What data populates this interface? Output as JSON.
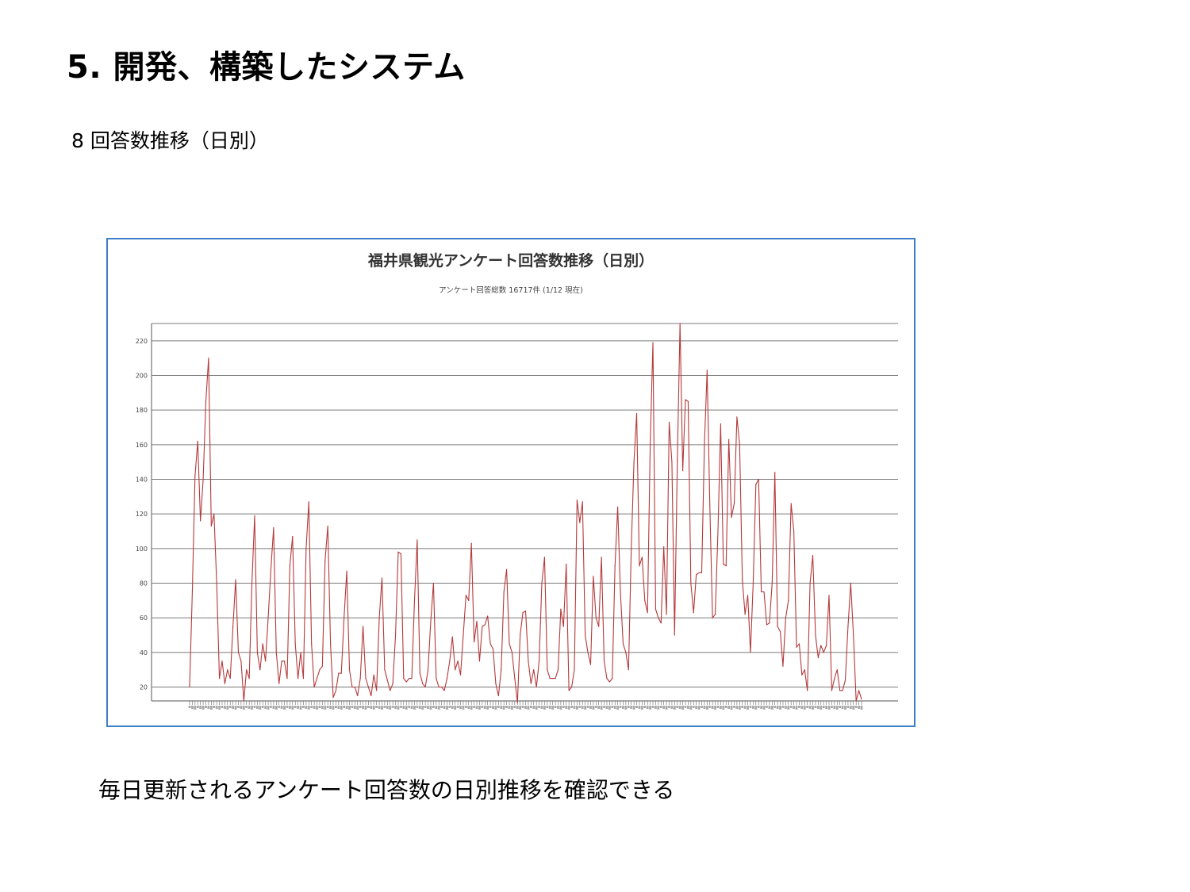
{
  "slide": {
    "title": "5. 開発、構築したシステム",
    "subsection": "8 回答数推移（日別）",
    "caption": "毎日更新されるアンケート回答数の日別推移を確認できる"
  },
  "colors": {
    "frame_border": "#3d7fc6",
    "series_line": "#b5393a",
    "gridline": "#7a7a7a"
  },
  "chart_data": {
    "type": "line",
    "title": "福井県観光アンケート回答数推移（日別）",
    "subtitle": "アンケート回答総数 16717件 (1/12 現在)",
    "xlabel": "",
    "ylabel": "",
    "ylim": [
      12,
      230
    ],
    "yticks": [
      20,
      40,
      60,
      80,
      100,
      120,
      140,
      160,
      180,
      200,
      220
    ],
    "grid": true,
    "legend": "none",
    "series": [
      {
        "values": [
          20,
          75,
          142,
          162,
          116,
          140,
          185,
          210,
          113,
          120,
          80,
          25,
          35,
          22,
          30,
          25,
          55,
          82,
          40,
          35,
          12,
          30,
          25,
          80,
          119,
          40,
          30,
          45,
          35,
          60,
          88,
          112,
          40,
          22,
          35,
          35,
          25,
          90,
          107,
          45,
          25,
          40,
          25,
          100,
          127,
          45,
          20,
          25,
          30,
          32,
          93,
          113,
          45,
          14,
          18,
          28,
          28,
          60,
          87,
          30,
          20,
          20,
          15,
          25,
          55,
          25,
          20,
          15,
          27,
          18,
          60,
          83,
          30,
          24,
          18,
          22,
          50,
          98,
          97,
          25,
          23,
          25,
          25,
          70,
          105,
          28,
          22,
          20,
          30,
          58,
          80,
          25,
          20,
          20,
          18,
          25,
          35,
          49,
          30,
          35,
          27,
          50,
          73,
          70,
          103,
          46,
          58,
          35,
          55,
          56,
          61,
          45,
          42,
          22,
          15,
          30,
          75,
          88,
          45,
          40,
          25,
          11,
          50,
          63,
          64,
          35,
          22,
          30,
          20,
          35,
          80,
          95,
          30,
          25,
          25,
          25,
          30,
          65,
          55,
          91,
          18,
          20,
          30,
          128,
          115,
          127,
          50,
          40,
          33,
          84,
          60,
          55,
          95,
          35,
          25,
          23,
          25,
          90,
          124,
          75,
          45,
          40,
          30,
          100,
          150,
          178,
          90,
          95,
          70,
          63,
          160,
          219,
          65,
          60,
          57,
          101,
          62,
          173,
          150,
          50,
          150,
          230,
          145,
          186,
          185,
          80,
          63,
          85,
          86,
          86,
          160,
          203,
          125,
          60,
          62,
          110,
          172,
          91,
          90,
          163,
          118,
          126,
          176,
          160,
          82,
          62,
          73,
          40,
          80,
          137,
          140,
          75,
          75,
          56,
          57,
          80,
          144,
          55,
          52,
          32,
          60,
          70,
          126,
          110,
          43,
          45,
          27,
          30,
          18,
          80,
          96,
          50,
          37,
          44,
          40,
          44,
          73,
          18,
          25,
          30,
          18,
          18,
          24,
          55,
          80,
          50,
          12,
          18,
          13
        ]
      }
    ]
  }
}
